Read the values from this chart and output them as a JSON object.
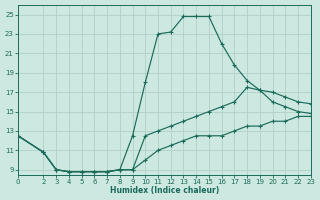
{
  "xlabel": "Humidex (Indice chaleur)",
  "ylabel": "",
  "bg_color": "#cde8e0",
  "grid_color": "#b0d0c8",
  "line_color": "#1a6b5a",
  "xlim": [
    0,
    23
  ],
  "ylim": [
    8.5,
    26
  ],
  "xticks": [
    0,
    2,
    3,
    4,
    5,
    6,
    7,
    8,
    9,
    10,
    11,
    12,
    13,
    14,
    15,
    16,
    17,
    18,
    19,
    20,
    21,
    22,
    23
  ],
  "yticks": [
    9,
    11,
    13,
    15,
    17,
    19,
    21,
    23,
    25
  ],
  "line_top_x": [
    0,
    2,
    3,
    4,
    5,
    6,
    7,
    8,
    9,
    10,
    11,
    12,
    13,
    14,
    15,
    16,
    17,
    18,
    19,
    20,
    21,
    22,
    23
  ],
  "line_top_y": [
    12.5,
    10.8,
    9.0,
    8.8,
    8.8,
    8.8,
    8.8,
    9.0,
    12.5,
    18.0,
    23.0,
    23.2,
    24.8,
    24.8,
    24.8,
    22.0,
    19.8,
    18.2,
    17.2,
    16.0,
    15.5,
    15.0,
    14.8
  ],
  "line_mid_x": [
    0,
    2,
    3,
    4,
    5,
    6,
    7,
    8,
    9,
    10,
    11,
    12,
    13,
    14,
    15,
    16,
    17,
    18,
    19,
    20,
    21,
    22,
    23
  ],
  "line_mid_y": [
    12.5,
    10.8,
    9.0,
    8.8,
    8.8,
    8.8,
    8.8,
    9.0,
    9.0,
    12.5,
    13.0,
    13.5,
    14.0,
    14.5,
    15.0,
    15.5,
    16.0,
    17.5,
    17.2,
    17.0,
    16.5,
    16.0,
    15.8
  ],
  "line_bot_x": [
    0,
    2,
    3,
    4,
    5,
    6,
    7,
    8,
    9,
    10,
    11,
    12,
    13,
    14,
    15,
    16,
    17,
    18,
    19,
    20,
    21,
    22,
    23
  ],
  "line_bot_y": [
    12.5,
    10.8,
    9.0,
    8.8,
    8.8,
    8.8,
    8.8,
    9.0,
    9.0,
    10.0,
    11.0,
    11.5,
    12.0,
    12.5,
    12.5,
    12.5,
    13.0,
    13.5,
    13.5,
    14.0,
    14.0,
    14.5,
    14.5
  ]
}
